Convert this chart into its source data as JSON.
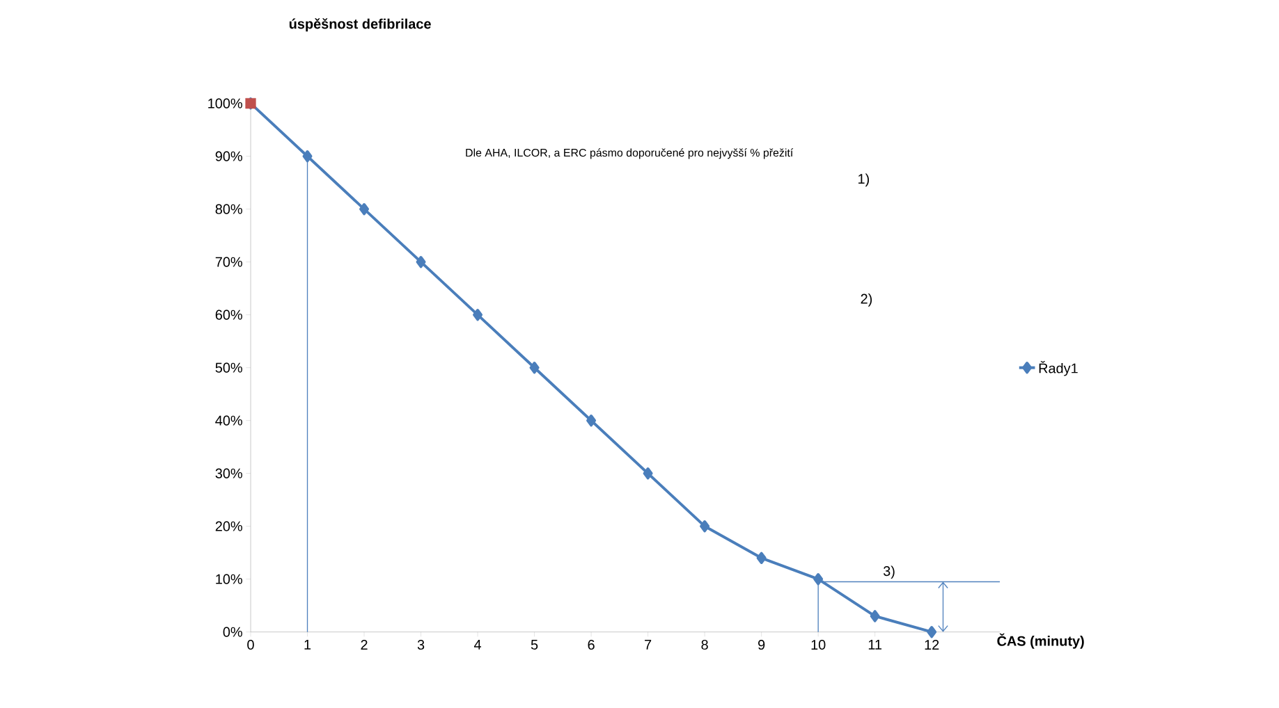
{
  "chart_data": {
    "type": "line",
    "title": "úspěšnost defibrilace",
    "xlabel": "ČAS (minuty)",
    "x": [
      0,
      1,
      2,
      3,
      4,
      5,
      6,
      7,
      8,
      9,
      10,
      11,
      12
    ],
    "series": [
      {
        "name": "Řady1",
        "color": "#4a7ebb",
        "marker": "diamond",
        "values": [
          100,
          90,
          80,
          70,
          60,
          50,
          40,
          30,
          20,
          14,
          10,
          3,
          0
        ]
      },
      {
        "type": "scatter",
        "color": "#c0504d",
        "marker": "square",
        "x": [
          0
        ],
        "values": [
          100
        ]
      }
    ],
    "xlim": [
      0,
      13.2
    ],
    "xticks": [
      0,
      1,
      2,
      3,
      4,
      5,
      6,
      7,
      8,
      9,
      10,
      11,
      12
    ],
    "ylim": [
      0,
      100
    ],
    "yticks": [
      {
        "value": 0,
        "label": "0%"
      },
      {
        "value": 10,
        "label": "10%"
      },
      {
        "value": 20,
        "label": "20%"
      },
      {
        "value": 30,
        "label": "30%"
      },
      {
        "value": 40,
        "label": "40%"
      },
      {
        "value": 50,
        "label": "50%"
      },
      {
        "value": 60,
        "label": "60%"
      },
      {
        "value": 70,
        "label": "70%"
      },
      {
        "value": 80,
        "label": "80%"
      },
      {
        "value": 90,
        "label": "90%"
      },
      {
        "value": 100,
        "label": "100%"
      }
    ],
    "ref_lines": [
      {
        "axis": "x",
        "value": 1,
        "color": "#4f81bd"
      },
      {
        "axis": "x",
        "value": 10,
        "color": "#4f81bd"
      },
      {
        "axis": "y",
        "value": 9.5,
        "color": "#4f81bd"
      }
    ],
    "annotations": [
      "Dle AHA, ILCOR, a ERC pásmo doporučené pro nejvyšší % přežití",
      "1)",
      "2)",
      "3)"
    ],
    "grid": false,
    "legend": "right"
  }
}
